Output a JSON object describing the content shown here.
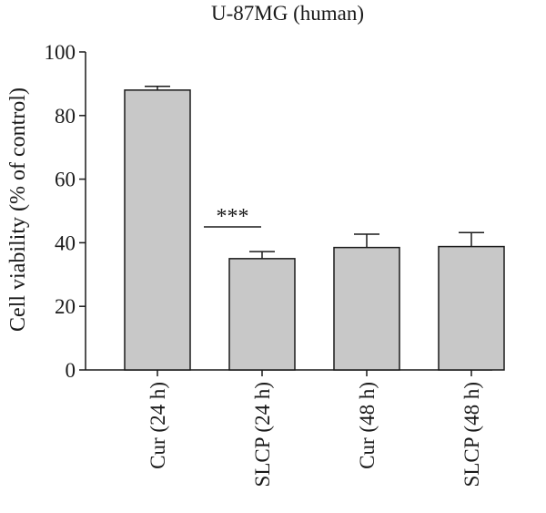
{
  "chart_data": {
    "type": "bar",
    "title": "U-87MG (human)",
    "xlabel": "",
    "ylabel": "Cell viability (% of control)",
    "ylim": [
      0,
      100
    ],
    "yticks": [
      0,
      20,
      40,
      60,
      80,
      100
    ],
    "categories": [
      "Cur (24 h)",
      "SLCP (24 h)",
      "Cur (48 h)",
      "SLCP (48 h)"
    ],
    "values": [
      88,
      35,
      38.5,
      38.8
    ],
    "errors": [
      1.2,
      2.2,
      4.2,
      4.4
    ],
    "bar_color": "#c8c8c8",
    "edge_color": "#1a1a1a",
    "grid": false,
    "annotations": [
      {
        "text": "***",
        "between": [
          "Cur (24 h)",
          "SLCP (24 h)"
        ],
        "y": 45
      }
    ]
  }
}
